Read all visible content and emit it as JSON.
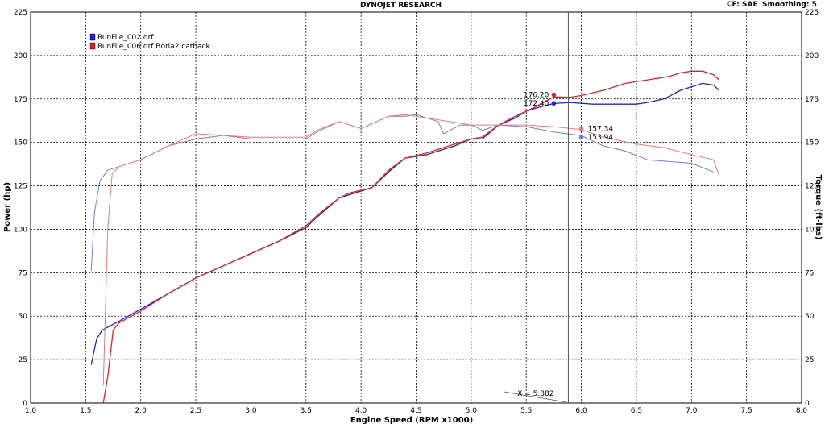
{
  "header": {
    "title": "DYNOJET RESEARCH",
    "correction": "CF: SAE",
    "smoothing": "Smoothing: 5"
  },
  "colors": {
    "run1": "#2222cc",
    "run2": "#dd2222",
    "run1_torque": "#7777ee",
    "run2_torque": "#ee7777",
    "grid": "#000000",
    "cursor": "#555555"
  },
  "chart_data": {
    "type": "line",
    "title": "DYNOJET RESEARCH",
    "xlabel": "Engine Speed (RPM x1000)",
    "ylabel": "Power (hp)",
    "y2label": "Torque (ft-lbs)",
    "xlim": [
      1.0,
      8.0
    ],
    "ylim": [
      0,
      225
    ],
    "y2lim": [
      0,
      225
    ],
    "x_ticks": [
      "1.0",
      "1.5",
      "2.0",
      "2.5",
      "3.0",
      "3.5",
      "4.0",
      "4.5",
      "5.0",
      "5.5",
      "6.0",
      "6.5",
      "7.0",
      "7.5",
      "8.0"
    ],
    "y_ticks": [
      "0",
      "25",
      "50",
      "75",
      "100",
      "125",
      "150",
      "175",
      "200",
      "225"
    ],
    "grid": true,
    "legend_placement": "top-left",
    "legend": [
      {
        "label": "RunFile_002.drf",
        "color": "#2222cc"
      },
      {
        "label": "RunFile_006.drf Borla2 catback",
        "color": "#dd2222"
      }
    ],
    "cursor": {
      "x": 5.882,
      "label": "X = 5.882"
    },
    "markers": [
      {
        "text": "176.20",
        "x": 5.75,
        "y": 177.5,
        "color": "#dd2222",
        "side": "left"
      },
      {
        "text": "172.40",
        "x": 5.75,
        "y": 172.5,
        "color": "#2222cc",
        "side": "left"
      },
      {
        "text": "157.34",
        "x": 6.0,
        "y": 158.0,
        "color": "#ee7777",
        "side": "right"
      },
      {
        "text": "153.94",
        "x": 6.0,
        "y": 153.0,
        "color": "#7777ee",
        "side": "right"
      }
    ],
    "series": [
      {
        "name": "RunFile_002.drf",
        "kind": "power",
        "color": "#2222cc",
        "points": [
          [
            1.55,
            22
          ],
          [
            1.6,
            37
          ],
          [
            1.65,
            42
          ],
          [
            1.8,
            47
          ],
          [
            2.0,
            54
          ],
          [
            2.25,
            63
          ],
          [
            2.5,
            72
          ],
          [
            2.75,
            79
          ],
          [
            3.0,
            86
          ],
          [
            3.25,
            93
          ],
          [
            3.5,
            101
          ],
          [
            3.6,
            107
          ],
          [
            3.8,
            118
          ],
          [
            3.9,
            120
          ],
          [
            4.1,
            124
          ],
          [
            4.25,
            133
          ],
          [
            4.4,
            141
          ],
          [
            4.6,
            143
          ],
          [
            4.7,
            145
          ],
          [
            4.85,
            148
          ],
          [
            5.0,
            152
          ],
          [
            5.1,
            152
          ],
          [
            5.25,
            160
          ],
          [
            5.4,
            164
          ],
          [
            5.5,
            168
          ],
          [
            5.6,
            170
          ],
          [
            5.75,
            172.4
          ],
          [
            5.9,
            173
          ],
          [
            6.1,
            172
          ],
          [
            6.3,
            172
          ],
          [
            6.5,
            172
          ],
          [
            6.6,
            173
          ],
          [
            6.75,
            175
          ],
          [
            6.9,
            180
          ],
          [
            7.1,
            184
          ],
          [
            7.2,
            183
          ],
          [
            7.25,
            180
          ]
        ]
      },
      {
        "name": "RunFile_006.drf Borla2 catback",
        "kind": "power",
        "color": "#dd2222",
        "points": [
          [
            1.66,
            0
          ],
          [
            1.7,
            15
          ],
          [
            1.75,
            42
          ],
          [
            1.8,
            46
          ],
          [
            2.0,
            53
          ],
          [
            2.25,
            63
          ],
          [
            2.5,
            72
          ],
          [
            2.75,
            79
          ],
          [
            3.0,
            86
          ],
          [
            3.25,
            93
          ],
          [
            3.5,
            102
          ],
          [
            3.6,
            108
          ],
          [
            3.8,
            118
          ],
          [
            3.9,
            121
          ],
          [
            4.1,
            124
          ],
          [
            4.25,
            134
          ],
          [
            4.4,
            141
          ],
          [
            4.6,
            144
          ],
          [
            4.7,
            146
          ],
          [
            4.85,
            149
          ],
          [
            5.0,
            152
          ],
          [
            5.1,
            153
          ],
          [
            5.25,
            160
          ],
          [
            5.4,
            165
          ],
          [
            5.5,
            168
          ],
          [
            5.6,
            171
          ],
          [
            5.75,
            176.2
          ],
          [
            5.9,
            176
          ],
          [
            6.0,
            177
          ],
          [
            6.2,
            180
          ],
          [
            6.4,
            184
          ],
          [
            6.6,
            186
          ],
          [
            6.8,
            188
          ],
          [
            6.9,
            190
          ],
          [
            7.0,
            191
          ],
          [
            7.1,
            191
          ],
          [
            7.2,
            189
          ],
          [
            7.25,
            186
          ]
        ]
      },
      {
        "name": "RunFile_002.drf",
        "kind": "torque",
        "color": "#7777ee",
        "points": [
          [
            1.55,
            76
          ],
          [
            1.58,
            110
          ],
          [
            1.63,
            128
          ],
          [
            1.7,
            134
          ],
          [
            1.8,
            136
          ],
          [
            2.0,
            140
          ],
          [
            2.25,
            148
          ],
          [
            2.5,
            152
          ],
          [
            2.75,
            154
          ],
          [
            3.0,
            152
          ],
          [
            3.25,
            152
          ],
          [
            3.5,
            152
          ],
          [
            3.6,
            156
          ],
          [
            3.8,
            162
          ],
          [
            4.0,
            158
          ],
          [
            4.25,
            165
          ],
          [
            4.4,
            165
          ],
          [
            4.5,
            166
          ],
          [
            4.7,
            162
          ],
          [
            4.75,
            155
          ],
          [
            4.9,
            160
          ],
          [
            5.0,
            160
          ],
          [
            5.1,
            157
          ],
          [
            5.25,
            160
          ],
          [
            5.5,
            159
          ],
          [
            5.75,
            156
          ],
          [
            6.0,
            153.94
          ],
          [
            6.2,
            148
          ],
          [
            6.4,
            145
          ],
          [
            6.6,
            140
          ],
          [
            6.8,
            139
          ],
          [
            7.0,
            138
          ],
          [
            7.2,
            133
          ]
        ]
      },
      {
        "name": "RunFile_006.drf Borla2 catback",
        "kind": "torque",
        "color": "#ee7777",
        "points": [
          [
            1.66,
            10
          ],
          [
            1.7,
            100
          ],
          [
            1.74,
            132
          ],
          [
            1.8,
            136
          ],
          [
            2.0,
            140
          ],
          [
            2.25,
            148
          ],
          [
            2.5,
            155
          ],
          [
            2.75,
            154
          ],
          [
            3.0,
            153
          ],
          [
            3.25,
            153
          ],
          [
            3.5,
            153
          ],
          [
            3.6,
            157
          ],
          [
            3.8,
            162
          ],
          [
            4.0,
            158
          ],
          [
            4.25,
            165
          ],
          [
            4.4,
            166
          ],
          [
            4.6,
            164
          ],
          [
            4.8,
            162
          ],
          [
            5.0,
            160
          ],
          [
            5.25,
            160
          ],
          [
            5.5,
            160
          ],
          [
            5.75,
            159
          ],
          [
            6.0,
            157.34
          ],
          [
            6.2,
            153
          ],
          [
            6.5,
            149
          ],
          [
            6.75,
            147
          ],
          [
            7.0,
            143
          ],
          [
            7.2,
            140
          ],
          [
            7.25,
            131
          ]
        ]
      }
    ]
  }
}
